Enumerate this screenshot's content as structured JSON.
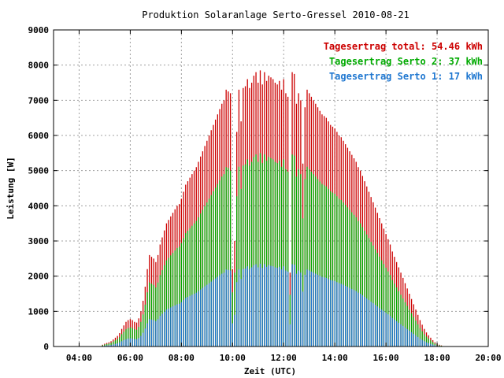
{
  "chart_data": {
    "type": "bar",
    "title": "Produktion Solaranlage Serto-Gressel 2010-08-21",
    "xlabel": "Zeit (UTC)",
    "ylabel": "Leistung [W]",
    "ylim": [
      0,
      9000
    ],
    "xlim": [
      "03:00",
      "20:00"
    ],
    "x_ticks": [
      "04:00",
      "06:00",
      "08:00",
      "10:00",
      "12:00",
      "14:00",
      "16:00",
      "18:00",
      "20:00"
    ],
    "y_ticks": [
      "0",
      "1000",
      "2000",
      "3000",
      "4000",
      "5000",
      "6000",
      "7000",
      "8000",
      "9000"
    ],
    "grid": true,
    "legend_position": "top-right",
    "colors": {
      "total": "#cc0000",
      "serto2": "#00aa00",
      "serto1": "#1f77d0",
      "grid": "#a0a0a0"
    },
    "legend": [
      {
        "label": "Tagesertrag total: 54.46 kWh",
        "color": "#cc0000"
      },
      {
        "label": "Tagesertrag Serto 2: 37 kWh",
        "color": "#00aa00"
      },
      {
        "label": "Tagesertrag Serto 1: 17 kWh",
        "color": "#1f77d0"
      }
    ],
    "x": [
      "04:55",
      "05:00",
      "05:05",
      "05:10",
      "05:15",
      "05:20",
      "05:25",
      "05:30",
      "05:35",
      "05:40",
      "05:45",
      "05:50",
      "05:55",
      "06:00",
      "06:05",
      "06:10",
      "06:15",
      "06:20",
      "06:25",
      "06:30",
      "06:35",
      "06:40",
      "06:45",
      "06:50",
      "06:55",
      "07:00",
      "07:05",
      "07:10",
      "07:15",
      "07:20",
      "07:25",
      "07:30",
      "07:35",
      "07:40",
      "07:45",
      "07:50",
      "07:55",
      "08:00",
      "08:05",
      "08:10",
      "08:15",
      "08:20",
      "08:25",
      "08:30",
      "08:35",
      "08:40",
      "08:45",
      "08:50",
      "08:55",
      "09:00",
      "09:05",
      "09:10",
      "09:15",
      "09:20",
      "09:25",
      "09:30",
      "09:35",
      "09:40",
      "09:45",
      "09:50",
      "09:55",
      "10:00",
      "10:05",
      "10:10",
      "10:15",
      "10:20",
      "10:25",
      "10:30",
      "10:35",
      "10:40",
      "10:45",
      "10:50",
      "10:55",
      "11:00",
      "11:05",
      "11:10",
      "11:15",
      "11:20",
      "11:25",
      "11:30",
      "11:35",
      "11:40",
      "11:45",
      "11:50",
      "11:55",
      "12:00",
      "12:05",
      "12:10",
      "12:15",
      "12:20",
      "12:25",
      "12:30",
      "12:35",
      "12:40",
      "12:45",
      "12:50",
      "12:55",
      "13:00",
      "13:05",
      "13:10",
      "13:15",
      "13:20",
      "13:25",
      "13:30",
      "13:35",
      "13:40",
      "13:45",
      "13:50",
      "13:55",
      "14:00",
      "14:05",
      "14:10",
      "14:15",
      "14:20",
      "14:25",
      "14:30",
      "14:35",
      "14:40",
      "14:45",
      "14:50",
      "14:55",
      "15:00",
      "15:05",
      "15:10",
      "15:15",
      "15:20",
      "15:25",
      "15:30",
      "15:35",
      "15:40",
      "15:45",
      "15:50",
      "15:55",
      "16:00",
      "16:05",
      "16:10",
      "16:15",
      "16:20",
      "16:25",
      "16:30",
      "16:35",
      "16:40",
      "16:45",
      "16:50",
      "16:55",
      "17:00",
      "17:05",
      "17:10",
      "17:15",
      "17:20",
      "17:25",
      "17:30",
      "17:35",
      "17:40",
      "17:45",
      "17:50",
      "17:55",
      "18:00",
      "18:05",
      "18:10"
    ],
    "series": [
      {
        "name": "Tagesertrag total: 54.46 kWh",
        "values": [
          50,
          80,
          100,
          120,
          150,
          200,
          250,
          300,
          380,
          500,
          600,
          700,
          750,
          780,
          750,
          700,
          680,
          800,
          1000,
          1300,
          1700,
          2200,
          2600,
          2550,
          2500,
          2400,
          2600,
          2900,
          3100,
          3300,
          3500,
          3600,
          3700,
          3800,
          3900,
          4000,
          4050,
          4200,
          4400,
          4600,
          4700,
          4800,
          4900,
          5000,
          5100,
          5250,
          5400,
          5550,
          5700,
          5850,
          6000,
          6150,
          6300,
          6450,
          6600,
          6750,
          6900,
          7000,
          7300,
          7250,
          7200,
          2200,
          3000,
          6100,
          7300,
          6400,
          7350,
          7400,
          7600,
          7350,
          7500,
          7700,
          7800,
          7500,
          7850,
          7450,
          7800,
          7550,
          7700,
          7650,
          7600,
          7500,
          7450,
          7550,
          7300,
          7600,
          7200,
          7100,
          2100,
          7800,
          7750,
          6900,
          7200,
          7000,
          5200,
          6800,
          7300,
          7200,
          7100,
          7000,
          6900,
          6800,
          6700,
          6600,
          6550,
          6500,
          6400,
          6300,
          6250,
          6200,
          6100,
          6000,
          5950,
          5850,
          5750,
          5650,
          5550,
          5450,
          5350,
          5250,
          5100,
          5000,
          4850,
          4700,
          4550,
          4400,
          4250,
          4100,
          3950,
          3800,
          3650,
          3500,
          3350,
          3200,
          3050,
          2900,
          2700,
          2550,
          2400,
          2250,
          2100,
          1950,
          1800,
          1650,
          1500,
          1350,
          1200,
          1050,
          900,
          750,
          620,
          500,
          400,
          320,
          250,
          180,
          120,
          80,
          50,
          30
        ]
      },
      {
        "name": "Tagesertrag Serto 2: 37 kWh",
        "values": [
          35,
          55,
          70,
          85,
          105,
          140,
          175,
          210,
          265,
          350,
          420,
          490,
          525,
          545,
          525,
          490,
          475,
          560,
          700,
          910,
          1190,
          1540,
          1820,
          1785,
          1750,
          1680,
          1820,
          2030,
          2170,
          2310,
          2450,
          2520,
          2590,
          2660,
          2730,
          2800,
          2835,
          2940,
          3080,
          3220,
          3290,
          3360,
          3430,
          3500,
          3570,
          3675,
          3780,
          3885,
          3990,
          4095,
          4200,
          4305,
          4410,
          4515,
          4620,
          4725,
          4830,
          4900,
          5100,
          5075,
          5000,
          1540,
          2100,
          4270,
          5110,
          4480,
          5145,
          5180,
          5320,
          5145,
          5250,
          5390,
          5460,
          5250,
          5495,
          5215,
          5460,
          5285,
          5390,
          5355,
          5320,
          5250,
          5215,
          5285,
          5110,
          5320,
          5040,
          4970,
          1470,
          5460,
          5425,
          4830,
          5040,
          4900,
          3640,
          4760,
          5110,
          5040,
          4970,
          4900,
          4830,
          4760,
          4690,
          4620,
          4585,
          4550,
          4480,
          4410,
          4375,
          4340,
          4270,
          4200,
          4165,
          4095,
          4025,
          3955,
          3885,
          3815,
          3745,
          3675,
          3570,
          3500,
          3395,
          3290,
          3185,
          3080,
          2975,
          2870,
          2765,
          2660,
          2555,
          2450,
          2345,
          2240,
          2135,
          2030,
          1890,
          1785,
          1680,
          1575,
          1470,
          1365,
          1260,
          1155,
          1050,
          945,
          840,
          735,
          630,
          525,
          434,
          350,
          280,
          224,
          175,
          126,
          84,
          56,
          35,
          21
        ]
      },
      {
        "name": "Tagesertrag Serto 1: 17 kWh",
        "values": [
          15,
          25,
          30,
          35,
          45,
          60,
          75,
          90,
          115,
          150,
          180,
          210,
          225,
          235,
          225,
          210,
          205,
          240,
          300,
          390,
          510,
          660,
          780,
          765,
          750,
          720,
          780,
          870,
          930,
          990,
          1050,
          1080,
          1110,
          1140,
          1170,
          1200,
          1215,
          1260,
          1320,
          1380,
          1410,
          1440,
          1470,
          1500,
          1530,
          1575,
          1620,
          1665,
          1710,
          1755,
          1800,
          1845,
          1890,
          1935,
          1980,
          2025,
          2070,
          2100,
          2190,
          2175,
          2160,
          660,
          900,
          1830,
          2190,
          1920,
          2205,
          2220,
          2280,
          2205,
          2250,
          2310,
          2340,
          2250,
          2355,
          2235,
          2340,
          2265,
          2310,
          2295,
          2280,
          2250,
          2235,
          2265,
          2190,
          2280,
          2160,
          2130,
          630,
          2340,
          2325,
          2070,
          2160,
          2100,
          1560,
          2040,
          2190,
          2160,
          2130,
          2100,
          2070,
          2040,
          2010,
          1980,
          1965,
          1950,
          1920,
          1890,
          1875,
          1860,
          1830,
          1800,
          1785,
          1755,
          1725,
          1695,
          1665,
          1635,
          1605,
          1575,
          1530,
          1500,
          1455,
          1410,
          1365,
          1320,
          1275,
          1230,
          1185,
          1140,
          1095,
          1050,
          1005,
          960,
          915,
          870,
          810,
          765,
          720,
          675,
          630,
          585,
          540,
          495,
          450,
          405,
          360,
          315,
          270,
          225,
          186,
          150,
          120,
          96,
          75,
          54,
          36,
          24,
          15,
          9
        ]
      }
    ]
  }
}
